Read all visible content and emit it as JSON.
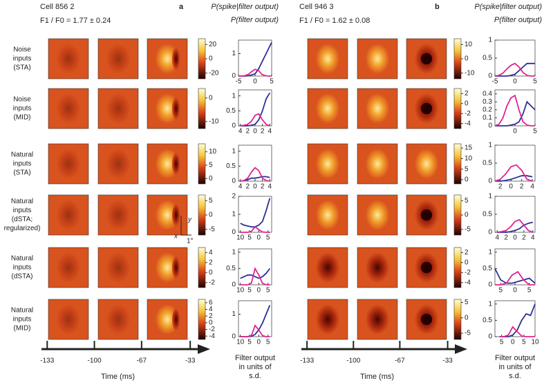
{
  "panels": [
    {
      "label": "a",
      "cell": "Cell 856 2",
      "ratio": "F1 / F0 = 1.77 ± 0.24",
      "colorbars": [
        {
          "ylim": [
            -28,
            28
          ],
          "yticks": [
            20,
            0,
            -20
          ]
        },
        {
          "ylim": [
            -13,
            4
          ],
          "yticks": [
            0,
            -10
          ]
        },
        {
          "ylim": [
            -2,
            13
          ],
          "yticks": [
            10,
            5,
            0
          ]
        },
        {
          "ylim": [
            -7,
            7
          ],
          "yticks": [
            5,
            0,
            -5
          ]
        },
        {
          "ylim": [
            -3,
            5
          ],
          "yticks": [
            4,
            2,
            0,
            -2
          ]
        },
        {
          "ylim": [
            -5,
            7
          ],
          "yticks": [
            6,
            4,
            2,
            0,
            -2,
            -4
          ]
        }
      ],
      "time_axis": {
        "label": "Time (ms)",
        "xlim": [
          -137,
          -21
        ],
        "xticks": [
          -133,
          -100,
          -67,
          -33
        ]
      },
      "xlabel": [
        "Filter output",
        "in units of",
        "s.d."
      ]
    },
    {
      "label": "b",
      "cell": "Cell 946 3",
      "ratio": "F1 / F0 = 1.62 ± 0.08",
      "colorbars": [
        {
          "ylim": [
            -14,
            14
          ],
          "yticks": [
            10,
            0,
            -10
          ]
        },
        {
          "ylim": [
            -5,
            3
          ],
          "yticks": [
            2,
            0,
            -2,
            -4
          ]
        },
        {
          "ylim": [
            -2,
            17
          ],
          "yticks": [
            15,
            10,
            5,
            0
          ]
        },
        {
          "ylim": [
            -7,
            7
          ],
          "yticks": [
            5,
            0,
            -5
          ]
        },
        {
          "ylim": [
            -5,
            3
          ],
          "yticks": [
            2,
            0,
            -2,
            -4
          ]
        },
        {
          "ylim": [
            -7,
            6
          ],
          "yticks": [
            5,
            0,
            -5
          ]
        }
      ],
      "time_axis": {
        "label": "Time (ms)",
        "xlim": [
          -137,
          -21
        ],
        "xticks": [
          -133,
          -100,
          -67,
          -33
        ]
      },
      "xlabel": [
        "Filter output",
        "in units of",
        "s.d."
      ]
    }
  ],
  "row_labels": [
    [
      "Noise",
      "inputs",
      "(STA)"
    ],
    [
      "Noise",
      "inputs",
      "(MID)"
    ],
    [
      "Natural",
      "inputs",
      "(STA)"
    ],
    [
      "Natural",
      "inputs",
      "(dSTA;",
      "regularized)"
    ],
    [
      "Natural",
      "inputs",
      "(dSTA)"
    ],
    [
      "Natural",
      "inputs",
      "(MID)"
    ]
  ],
  "scale_bar": {
    "x": "x",
    "y": "y",
    "size": "1°"
  },
  "chart_data": [
    {
      "type": "line",
      "x": [
        -5,
        -4,
        -3,
        -2,
        -1,
        0,
        1,
        2,
        3,
        4,
        5
      ],
      "xlim": [
        -5,
        5
      ],
      "xticks": [
        -5,
        0,
        5
      ],
      "ylim": [
        0,
        1.6
      ],
      "yticks": [
        0,
        1
      ],
      "series": [
        {
          "name": "P(spike|filter output)",
          "color": "#2b2f94",
          "values": [
            0,
            0,
            0,
            0.02,
            0.05,
            0.1,
            0.3,
            0.6,
            0.9,
            1.2,
            1.5
          ]
        },
        {
          "name": "P(filter output)",
          "color": "#e0238f",
          "values": [
            0,
            0,
            0.02,
            0.08,
            0.2,
            0.3,
            0.25,
            0.08,
            0.02,
            0,
            0
          ]
        }
      ]
    },
    {
      "type": "line",
      "x": [
        -4,
        -3,
        -2,
        -1,
        0,
        1,
        2,
        3,
        4
      ],
      "xlim": [
        -4.5,
        4.5
      ],
      "xticks": [
        {
          "value": -4,
          "label": "4"
        },
        {
          "value": -2,
          "label": "2"
        },
        0,
        2,
        4
      ],
      "ylim": [
        0,
        1.2
      ],
      "yticks": [
        0,
        0.5,
        1
      ],
      "series": [
        {
          "name": "P(spike|filter output)",
          "color": "#2b2f94",
          "values": [
            0,
            0,
            0,
            0.02,
            0.05,
            0.2,
            0.5,
            0.9,
            1.1
          ]
        },
        {
          "name": "P(filter output)",
          "color": "#e0238f",
          "values": [
            0,
            0.02,
            0.05,
            0.15,
            0.35,
            0.4,
            0.2,
            0.05,
            0
          ]
        }
      ]
    },
    {
      "type": "line",
      "x": [
        -4,
        -3,
        -2,
        -1,
        0,
        1,
        2,
        3,
        4
      ],
      "xlim": [
        -4.5,
        4.5
      ],
      "xticks": [
        {
          "value": -4,
          "label": "4"
        },
        {
          "value": -2,
          "label": "2"
        },
        0,
        2,
        4
      ],
      "ylim": [
        0,
        1.2
      ],
      "yticks": [
        0,
        0.5,
        1
      ],
      "series": [
        {
          "name": "P(spike|filter output)",
          "color": "#2b2f94",
          "values": [
            0,
            0.02,
            0.05,
            0.1,
            0.1,
            0.12,
            0.15,
            0.15,
            0.12
          ]
        },
        {
          "name": "P(filter output)",
          "color": "#e0238f",
          "values": [
            0,
            0.02,
            0.1,
            0.3,
            0.45,
            0.35,
            0.1,
            0.02,
            0
          ]
        }
      ]
    },
    {
      "type": "line",
      "x": [
        -10,
        -8,
        -6,
        -4,
        -2,
        0,
        2,
        4,
        6
      ],
      "xlim": [
        -11,
        7
      ],
      "xticks": [
        {
          "value": -10,
          "label": "10"
        },
        {
          "value": -5,
          "label": "5"
        },
        0,
        5
      ],
      "ylim": [
        0,
        2
      ],
      "yticks": [
        0,
        1,
        2
      ],
      "series": [
        {
          "name": "P(spike|filter output)",
          "color": "#2b2f94",
          "values": [
            0.5,
            0.4,
            0.35,
            0.3,
            0.3,
            0.4,
            0.6,
            1.2,
            1.9
          ]
        },
        {
          "name": "P(filter output)",
          "color": "#e0238f",
          "values": [
            0,
            0,
            0,
            0.05,
            0.3,
            0.15,
            0.02,
            0,
            0
          ]
        }
      ]
    },
    {
      "type": "line",
      "x": [
        -10,
        -8,
        -6,
        -4,
        -2,
        0,
        2,
        4,
        6
      ],
      "xlim": [
        -11,
        7
      ],
      "xticks": [
        {
          "value": -10,
          "label": "10"
        },
        {
          "value": -5,
          "label": "5"
        },
        0,
        5
      ],
      "ylim": [
        0,
        1.1
      ],
      "yticks": [
        0,
        0.5,
        1
      ],
      "series": [
        {
          "name": "P(spike|filter output)",
          "color": "#2b2f94",
          "values": [
            0.2,
            0.25,
            0.3,
            0.3,
            0.25,
            0.2,
            0.25,
            0.35,
            0.5
          ]
        },
        {
          "name": "P(filter output)",
          "color": "#e0238f",
          "values": [
            0,
            0,
            0,
            0.05,
            0.5,
            0.3,
            0.05,
            0,
            0
          ]
        }
      ]
    },
    {
      "type": "line",
      "x": [
        -10,
        -8,
        -6,
        -4,
        -2,
        0,
        2,
        4,
        6
      ],
      "xlim": [
        -11,
        7
      ],
      "xticks": [
        {
          "value": -10,
          "label": "10"
        },
        {
          "value": -5,
          "label": "5"
        },
        0,
        5
      ],
      "ylim": [
        0,
        1.6
      ],
      "yticks": [
        0,
        1
      ],
      "series": [
        {
          "name": "P(spike|filter output)",
          "color": "#2b2f94",
          "values": [
            0,
            0,
            0,
            0.02,
            0.1,
            0.3,
            0.6,
            1.0,
            1.4
          ]
        },
        {
          "name": "P(filter output)",
          "color": "#e0238f",
          "values": [
            0,
            0,
            0,
            0.05,
            0.5,
            0.3,
            0.05,
            0,
            0
          ]
        }
      ]
    },
    {
      "type": "line",
      "x": [
        -5,
        -4,
        -3,
        -2,
        -1,
        0,
        1,
        2,
        3,
        4,
        5
      ],
      "xlim": [
        -5,
        5
      ],
      "xticks": [
        -5,
        0,
        5
      ],
      "ylim": [
        0,
        1
      ],
      "yticks": [
        0,
        0.5,
        1
      ],
      "series": [
        {
          "name": "P(spike|filter output)",
          "color": "#2b2f94",
          "values": [
            0,
            0,
            0,
            0,
            0.02,
            0.05,
            0.15,
            0.25,
            0.35,
            0.35,
            0.35
          ]
        },
        {
          "name": "P(filter output)",
          "color": "#e0238f",
          "values": [
            0,
            0.02,
            0.08,
            0.2,
            0.3,
            0.35,
            0.25,
            0.1,
            0.02,
            0,
            0
          ]
        }
      ]
    },
    {
      "type": "line",
      "x": [
        -5,
        -4,
        -3,
        -2,
        -1,
        0,
        1,
        2,
        3,
        4,
        5
      ],
      "xlim": [
        -5,
        5
      ],
      "xticks": [
        0,
        5
      ],
      "ylim": [
        0,
        0.45
      ],
      "yticks": [
        0,
        0.1,
        0.2,
        0.3,
        0.4
      ],
      "series": [
        {
          "name": "P(spike|filter output)",
          "color": "#2b2f94",
          "values": [
            0,
            0,
            0,
            0,
            0.01,
            0.02,
            0.05,
            0.15,
            0.3,
            0.25,
            0.2
          ]
        },
        {
          "name": "P(filter output)",
          "color": "#e0238f",
          "values": [
            0,
            0.02,
            0.1,
            0.25,
            0.35,
            0.38,
            0.2,
            0.05,
            0.01,
            0,
            0
          ]
        }
      ]
    },
    {
      "type": "line",
      "x": [
        -3,
        -2,
        -1,
        0,
        1,
        2,
        3,
        4
      ],
      "xlim": [
        -3,
        4.5
      ],
      "xticks": [
        {
          "value": -2,
          "label": "2"
        },
        0,
        2,
        4
      ],
      "ylim": [
        0,
        1
      ],
      "yticks": [
        0,
        0.5,
        1
      ],
      "series": [
        {
          "name": "P(spike|filter output)",
          "color": "#2b2f94",
          "values": [
            0,
            0,
            0.02,
            0.05,
            0.1,
            0.15,
            0.15,
            0.12
          ]
        },
        {
          "name": "P(filter output)",
          "color": "#e0238f",
          "values": [
            0,
            0.05,
            0.2,
            0.4,
            0.45,
            0.3,
            0.05,
            0
          ]
        }
      ]
    },
    {
      "type": "line",
      "x": [
        -4,
        -3,
        -2,
        -1,
        0,
        1,
        2,
        3,
        4
      ],
      "xlim": [
        -4.5,
        4.5
      ],
      "xticks": [
        {
          "value": -4,
          "label": "4"
        },
        {
          "value": -2,
          "label": "2"
        },
        0,
        2,
        4
      ],
      "ylim": [
        0,
        1
      ],
      "yticks": [
        0,
        0.5,
        1
      ],
      "series": [
        {
          "name": "P(spike|filter output)",
          "color": "#2b2f94",
          "values": [
            0,
            0,
            0,
            0.02,
            0.05,
            0.1,
            0.2,
            0.25,
            0.28
          ]
        },
        {
          "name": "P(filter output)",
          "color": "#e0238f",
          "values": [
            0,
            0.02,
            0.05,
            0.15,
            0.3,
            0.35,
            0.2,
            0.05,
            0
          ]
        }
      ]
    },
    {
      "type": "line",
      "x": [
        -7,
        -5,
        -3,
        -1,
        1,
        3,
        5,
        7
      ],
      "xlim": [
        -7,
        7
      ],
      "xticks": [
        {
          "value": -5,
          "label": "5"
        },
        0,
        5
      ],
      "ylim": [
        0,
        1.1
      ],
      "yticks": [
        0,
        0.5,
        1
      ],
      "series": [
        {
          "name": "P(spike|filter output)",
          "color": "#2b2f94",
          "values": [
            0.5,
            0.15,
            0.05,
            0.05,
            0.1,
            0.15,
            0.2,
            0.05
          ]
        },
        {
          "name": "P(filter output)",
          "color": "#e0238f",
          "values": [
            0,
            0,
            0.05,
            0.3,
            0.4,
            0.15,
            0,
            0
          ]
        }
      ]
    },
    {
      "type": "line",
      "x": [
        -6,
        -4,
        -2,
        0,
        2,
        4,
        6,
        8,
        10
      ],
      "xlim": [
        -8,
        10
      ],
      "xticks": [
        {
          "value": -5,
          "label": "5"
        },
        0,
        5,
        10
      ],
      "ylim": [
        0,
        1.1
      ],
      "yticks": [
        0,
        0.5,
        1
      ],
      "series": [
        {
          "name": "P(spike|filter output)",
          "color": "#2b2f94",
          "values": [
            0,
            0,
            0,
            0.05,
            0.2,
            0.5,
            0.7,
            0.65,
            1.0
          ]
        },
        {
          "name": "P(filter output)",
          "color": "#e0238f",
          "values": [
            0,
            0,
            0.05,
            0.3,
            0.15,
            0.02,
            0,
            0,
            0
          ]
        }
      ]
    }
  ]
}
